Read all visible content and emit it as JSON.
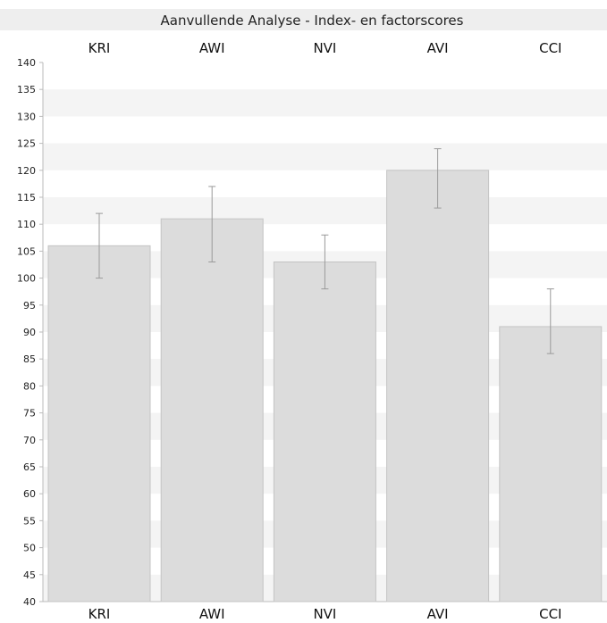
{
  "chart_data": {
    "type": "bar",
    "title": "Aanvullende Analyse - Index- en factorscores",
    "categories": [
      "KRI",
      "AWI",
      "NVI",
      "AVI",
      "CCI"
    ],
    "values": [
      106,
      111,
      103,
      120,
      91
    ],
    "error_low": [
      100,
      103,
      98,
      113,
      86
    ],
    "error_high": [
      112,
      117,
      108,
      124,
      98
    ],
    "ylim": [
      40,
      140
    ],
    "y_tick_step": 5,
    "xlabel": "",
    "ylabel": "",
    "grid": "alternating horizontal bands",
    "legend": "none",
    "colors": {
      "bar_fill": "#dcdcdc",
      "bar_stroke": "#c4c4c4",
      "error_bar": "#9a9a9a",
      "band": "#f4f4f4",
      "title_band": "#eeeeee",
      "axis": "#bbbbbb"
    }
  }
}
